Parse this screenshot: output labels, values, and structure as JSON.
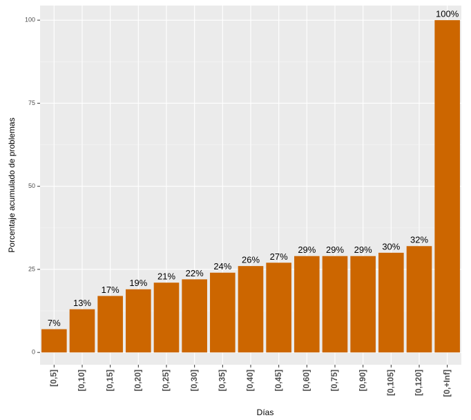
{
  "chart_data": {
    "type": "bar",
    "x_label": "Días",
    "y_label": "Porcentaje acumulado de problemas",
    "categories": [
      "[0,5]",
      "[0,10]",
      "[0,15]",
      "[0,20]",
      "[0,25]",
      "[0,30]",
      "[0,35]",
      "[0,40]",
      "[0,45]",
      "[0,60]",
      "[0,75]",
      "[0,90]",
      "[0,105]",
      "[0,120]",
      "[0,+Inf]"
    ],
    "values": [
      7,
      13,
      17,
      19,
      21,
      22,
      24,
      26,
      27,
      29,
      29,
      29,
      30,
      32,
      100
    ],
    "value_labels": [
      "7%",
      "13%",
      "17%",
      "19%",
      "21%",
      "22%",
      "24%",
      "26%",
      "27%",
      "29%",
      "29%",
      "29%",
      "30%",
      "32%",
      "100%"
    ],
    "color": "#cc6600",
    "ylim": [
      -3.7,
      104.4
    ],
    "yticks": [
      0,
      25,
      50,
      75,
      100
    ],
    "grid": true
  }
}
